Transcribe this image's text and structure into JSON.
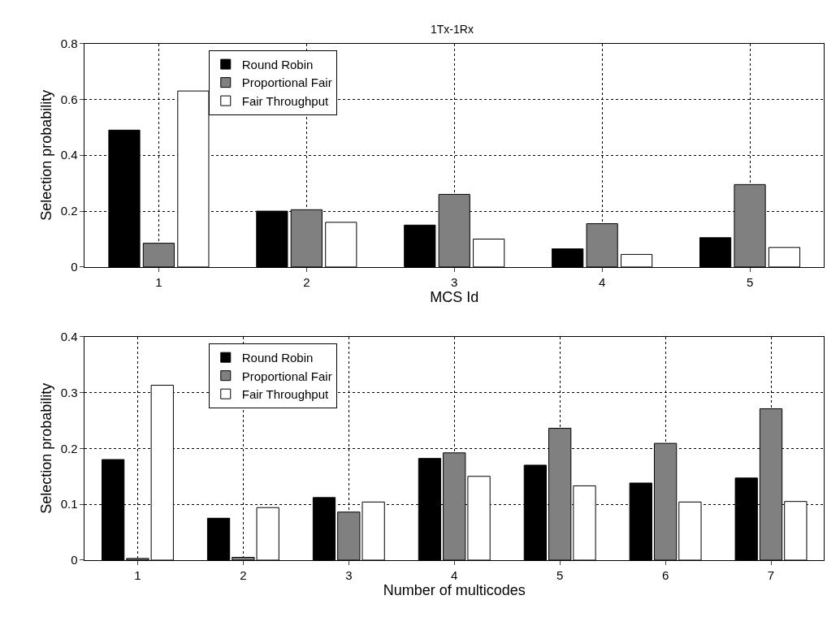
{
  "chart_data": [
    {
      "type": "bar",
      "title": "1Tx-1Rx",
      "xlabel": "MCS Id",
      "ylabel": "Selection probability",
      "categories": [
        "1",
        "2",
        "3",
        "4",
        "5"
      ],
      "series": [
        {
          "name": "Round Robin",
          "color": "#000000",
          "values": [
            0.49,
            0.2,
            0.15,
            0.065,
            0.105
          ]
        },
        {
          "name": "Proportional Fair",
          "color": "#808080",
          "values": [
            0.085,
            0.205,
            0.26,
            0.155,
            0.295
          ]
        },
        {
          "name": "Fair Throughput",
          "color": "#ffffff",
          "values": [
            0.63,
            0.16,
            0.1,
            0.045,
            0.07
          ]
        }
      ],
      "ylim": [
        0,
        0.8
      ],
      "yticks": [
        0,
        0.2,
        0.4,
        0.6,
        0.8
      ],
      "grid": true,
      "legend": "top left"
    },
    {
      "type": "bar",
      "xlabel": "Number of multicodes",
      "ylabel": "Selection probability",
      "categories": [
        "1",
        "2",
        "3",
        "4",
        "5",
        "6",
        "7"
      ],
      "series": [
        {
          "name": "Round Robin",
          "color": "#000000",
          "values": [
            0.18,
            0.075,
            0.112,
            0.182,
            0.17,
            0.138,
            0.147
          ]
        },
        {
          "name": "Proportional Fair",
          "color": "#808080",
          "values": [
            0.003,
            0.005,
            0.086,
            0.192,
            0.236,
            0.209,
            0.271
          ]
        },
        {
          "name": "Fair Throughput",
          "color": "#ffffff",
          "values": [
            0.313,
            0.094,
            0.104,
            0.15,
            0.133,
            0.104,
            0.105
          ]
        }
      ],
      "ylim": [
        0,
        0.4
      ],
      "yticks": [
        0,
        0.1,
        0.2,
        0.3,
        0.4
      ],
      "grid": true,
      "legend": "top left"
    }
  ]
}
